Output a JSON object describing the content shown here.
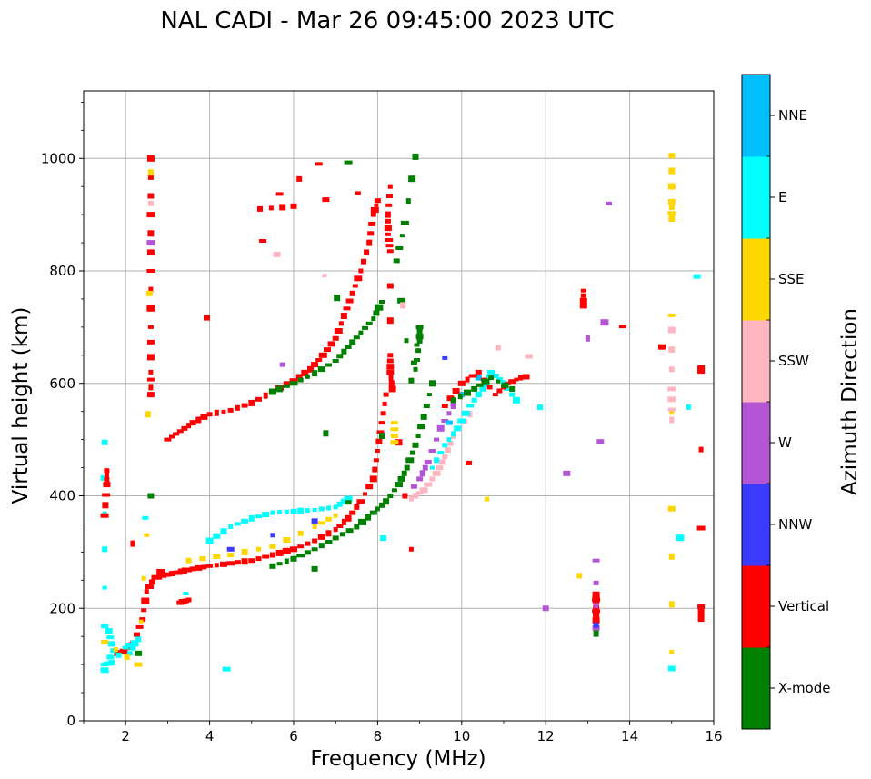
{
  "chart_data": {
    "type": "scatter",
    "title": "NAL CADI - Mar 26 09:45:00 2023 UTC",
    "xlabel": "Frequency (MHz)",
    "ylabel": "Virtual height (km)",
    "xlim": [
      1,
      16
    ],
    "ylim": [
      0,
      1120
    ],
    "xticks": [
      2,
      4,
      6,
      8,
      10,
      12,
      14,
      16
    ],
    "yticks": [
      0,
      200,
      400,
      600,
      800,
      1000
    ],
    "grid": true,
    "colorbar": {
      "label": "Azimuth Direction",
      "categories": [
        {
          "name": "X-mode",
          "color": "#008000"
        },
        {
          "name": "Vertical",
          "color": "#ff0000"
        },
        {
          "name": "NNW",
          "color": "#3b3bff"
        },
        {
          "name": "W",
          "color": "#b455d6"
        },
        {
          "name": "SSW",
          "color": "#ffb6c1"
        },
        {
          "name": "SSE",
          "color": "#ffd700"
        },
        {
          "name": "E",
          "color": "#00ffff"
        },
        {
          "name": "NNE",
          "color": "#00bfff"
        }
      ]
    },
    "traces": [
      {
        "category": "Vertical",
        "points": [
          [
            1.8,
            120
          ],
          [
            2.0,
            125
          ],
          [
            2.2,
            140
          ],
          [
            2.4,
            180
          ],
          [
            2.5,
            230
          ],
          [
            2.7,
            255
          ],
          [
            3.0,
            260
          ],
          [
            3.3,
            265
          ],
          [
            3.6,
            270
          ],
          [
            4.0,
            275
          ],
          [
            4.5,
            280
          ],
          [
            5.0,
            285
          ],
          [
            5.5,
            295
          ],
          [
            6.0,
            305
          ],
          [
            6.5,
            320
          ],
          [
            7.0,
            340
          ],
          [
            7.3,
            360
          ],
          [
            7.6,
            390
          ],
          [
            7.9,
            430
          ],
          [
            8.0,
            480
          ],
          [
            8.1,
            530
          ],
          [
            8.2,
            580
          ]
        ]
      },
      {
        "category": "Vertical",
        "points": [
          [
            3.0,
            500
          ],
          [
            3.3,
            515
          ],
          [
            3.6,
            530
          ],
          [
            4.0,
            545
          ],
          [
            4.5,
            552
          ],
          [
            5.0,
            565
          ],
          [
            5.5,
            585
          ],
          [
            6.0,
            605
          ],
          [
            6.4,
            625
          ],
          [
            6.7,
            650
          ],
          [
            7.0,
            680
          ],
          [
            7.2,
            720
          ],
          [
            7.4,
            760
          ],
          [
            7.6,
            800
          ],
          [
            7.8,
            850
          ],
          [
            7.9,
            900
          ],
          [
            8.0,
            925
          ]
        ]
      },
      {
        "category": "X-mode",
        "points": [
          [
            5.5,
            275
          ],
          [
            6.0,
            288
          ],
          [
            6.5,
            305
          ],
          [
            7.0,
            325
          ],
          [
            7.5,
            345
          ],
          [
            7.9,
            370
          ],
          [
            8.2,
            390
          ],
          [
            8.5,
            420
          ],
          [
            8.7,
            450
          ],
          [
            8.9,
            490
          ],
          [
            9.1,
            540
          ],
          [
            9.3,
            600
          ]
        ]
      },
      {
        "category": "X-mode",
        "points": [
          [
            5.5,
            585
          ],
          [
            6.0,
            600
          ],
          [
            6.5,
            618
          ],
          [
            7.0,
            640
          ],
          [
            7.3,
            665
          ],
          [
            7.6,
            690
          ],
          [
            7.9,
            715
          ],
          [
            8.1,
            745
          ]
        ]
      },
      {
        "category": "E",
        "points": [
          [
            4.0,
            320
          ],
          [
            4.5,
            345
          ],
          [
            5.0,
            360
          ],
          [
            5.5,
            370
          ],
          [
            6.0,
            372
          ],
          [
            6.5,
            375
          ],
          [
            7.0,
            380
          ],
          [
            7.3,
            395
          ]
        ]
      },
      {
        "category": "SSE",
        "points": [
          [
            3.5,
            285
          ],
          [
            4.5,
            295
          ],
          [
            5.5,
            310
          ],
          [
            6.5,
            345
          ],
          [
            7.0,
            365
          ]
        ]
      },
      {
        "category": "NNW",
        "points": [
          [
            4.5,
            305
          ],
          [
            5.5,
            330
          ],
          [
            6.5,
            355
          ]
        ]
      },
      {
        "category": "SSW",
        "points": [
          [
            8.8,
            395
          ],
          [
            9.1,
            410
          ],
          [
            9.4,
            440
          ],
          [
            9.6,
            470
          ],
          [
            9.8,
            505
          ],
          [
            10.2,
            545
          ]
        ]
      },
      {
        "category": "W",
        "points": [
          [
            9.0,
            430
          ],
          [
            9.2,
            460
          ],
          [
            9.5,
            520
          ],
          [
            9.8,
            560
          ]
        ]
      },
      {
        "category": "E",
        "points": [
          [
            9.3,
            450
          ],
          [
            9.6,
            490
          ],
          [
            9.9,
            520
          ],
          [
            10.2,
            560
          ],
          [
            10.5,
            590
          ],
          [
            10.7,
            620
          ],
          [
            11.0,
            600
          ],
          [
            11.3,
            570
          ]
        ]
      },
      {
        "category": "NNE",
        "points": [
          [
            9.7,
            530
          ],
          [
            10.0,
            580
          ],
          [
            10.4,
            610
          ]
        ]
      },
      {
        "category": "Vertical",
        "points": [
          [
            9.6,
            560
          ],
          [
            10.0,
            600
          ],
          [
            10.4,
            620
          ],
          [
            10.8,
            580
          ],
          [
            11.1,
            600
          ],
          [
            11.4,
            610
          ]
        ]
      },
      {
        "category": "X-mode",
        "points": [
          [
            9.8,
            570
          ],
          [
            10.3,
            590
          ],
          [
            10.7,
            610
          ],
          [
            11.2,
            590
          ]
        ]
      },
      {
        "category": "Vertical",
        "points": [
          [
            2.6,
            1000
          ],
          [
            2.6,
            900
          ],
          [
            2.6,
            800
          ],
          [
            2.6,
            700
          ],
          [
            2.6,
            620
          ],
          [
            2.6,
            580
          ],
          [
            6.6,
            990
          ],
          [
            5.2,
            910
          ],
          [
            6.0,
            915
          ],
          [
            8.3,
            950
          ],
          [
            8.25,
            900
          ],
          [
            8.25,
            865
          ],
          [
            8.3,
            835
          ],
          [
            8.3,
            650
          ],
          [
            8.3,
            620
          ],
          [
            8.35,
            590
          ],
          [
            8.8,
            305
          ],
          [
            12.9,
            765
          ],
          [
            12.9,
            738
          ],
          [
            15.7,
            628
          ],
          [
            15.7,
            622
          ],
          [
            15.7,
            203
          ],
          [
            15.7,
            180
          ]
        ]
      },
      {
        "category": "X-mode",
        "points": [
          [
            8.9,
            1003
          ],
          [
            8.65,
            885
          ],
          [
            8.45,
            818
          ],
          [
            8.8,
            605
          ],
          [
            9.0,
            700
          ],
          [
            9.0,
            675
          ],
          [
            8.9,
            625
          ],
          [
            6.5,
            270
          ],
          [
            7.3,
            993
          ]
        ]
      },
      {
        "category": "Vertical",
        "points": [
          [
            13.2,
            225
          ],
          [
            13.2,
            215
          ],
          [
            13.2,
            205
          ],
          [
            13.2,
            195
          ],
          [
            13.2,
            185
          ],
          [
            13.2,
            175
          ]
        ]
      },
      {
        "category": "W",
        "points": [
          [
            13.2,
            165
          ],
          [
            13.2,
            285
          ],
          [
            13.5,
            920
          ],
          [
            12.0,
            200
          ],
          [
            2.6,
            850
          ]
        ]
      },
      {
        "category": "NNW",
        "points": [
          [
            13.2,
            170
          ],
          [
            9.6,
            645
          ]
        ]
      },
      {
        "category": "X-mode",
        "points": [
          [
            13.2,
            155
          ]
        ]
      },
      {
        "category": "SSE",
        "points": [
          [
            15.0,
            1005
          ],
          [
            15.0,
            923
          ],
          [
            15.0,
            893
          ],
          [
            15.0,
            377
          ],
          [
            15.0,
            122
          ],
          [
            8.4,
            530
          ],
          [
            8.4,
            495
          ]
        ]
      },
      {
        "category": "SSW",
        "points": [
          [
            15.0,
            695
          ],
          [
            15.0,
            590
          ],
          [
            15.0,
            535
          ],
          [
            2.6,
            920
          ],
          [
            11.6,
            648
          ]
        ]
      },
      {
        "category": "E",
        "points": [
          [
            15.0,
            93
          ],
          [
            15.6,
            790
          ],
          [
            4.4,
            92
          ],
          [
            1.5,
            495
          ],
          [
            1.5,
            305
          ],
          [
            1.5,
            100
          ]
        ]
      },
      {
        "category": "Vertical",
        "points": [
          [
            1.55,
            445
          ],
          [
            1.55,
            420
          ],
          [
            1.5,
            365
          ],
          [
            3.5,
            215
          ],
          [
            3.3,
            210
          ]
        ]
      },
      {
        "category": "E",
        "points": [
          [
            1.6,
            160
          ],
          [
            1.7,
            125
          ],
          [
            1.5,
            90
          ],
          [
            2.0,
            130
          ],
          [
            2.3,
            145
          ],
          [
            2.1,
            120
          ]
        ]
      },
      {
        "category": "SSE",
        "points": [
          [
            1.5,
            140
          ],
          [
            2.3,
            100
          ],
          [
            2.5,
            330
          ],
          [
            2.6,
            975
          ]
        ]
      },
      {
        "category": "X-mode",
        "points": [
          [
            2.6,
            400
          ],
          [
            2.3,
            120
          ]
        ]
      }
    ]
  }
}
